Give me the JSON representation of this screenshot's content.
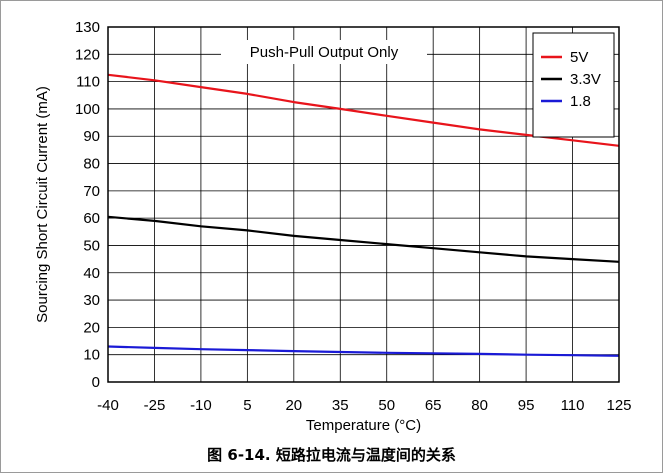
{
  "caption": "图 6-14. 短路拉电流与温度间的关系",
  "chart_data": {
    "type": "line",
    "title": "",
    "annotation": "Push-Pull Output Only",
    "xlabel": "Temperature (°C)",
    "ylabel": "Sourcing Short Circuit Current (mA)",
    "xlim": [
      -40,
      125
    ],
    "ylim": [
      0,
      130
    ],
    "xticks": [
      -40,
      -25,
      -10,
      5,
      20,
      35,
      50,
      65,
      80,
      95,
      110,
      125
    ],
    "yticks": [
      0,
      10,
      20,
      30,
      40,
      50,
      60,
      70,
      80,
      90,
      100,
      110,
      120,
      130
    ],
    "grid": true,
    "legend_position": "top-right",
    "x": [
      -40,
      -25,
      -10,
      5,
      20,
      35,
      50,
      65,
      80,
      95,
      110,
      125
    ],
    "series": [
      {
        "name": "5V",
        "color": "#e8141b",
        "values": [
          112.5,
          110.5,
          108,
          105.5,
          102.5,
          100,
          97.5,
          95,
          92.5,
          90.5,
          88.5,
          86.5
        ]
      },
      {
        "name": "3.3V",
        "color": "#000000",
        "values": [
          60.5,
          59,
          57,
          55.5,
          53.5,
          52,
          50.5,
          49,
          47.5,
          46,
          45,
          44
        ]
      },
      {
        "name": "1.8",
        "color": "#1a1ad6",
        "values": [
          13,
          12.5,
          12,
          11.7,
          11.3,
          11,
          10.7,
          10.5,
          10.3,
          10,
          9.8,
          9.6
        ]
      }
    ]
  }
}
